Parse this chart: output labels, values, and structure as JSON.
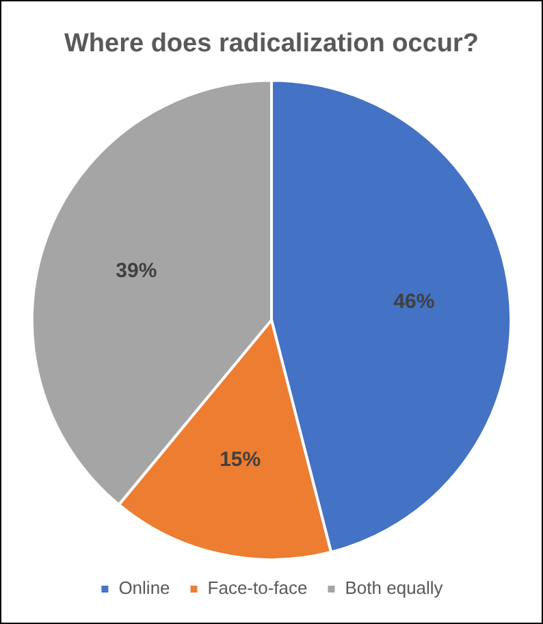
{
  "chart_data": {
    "type": "pie",
    "title": "Where does radicalization occur?",
    "categories": [
      "Online",
      "Face-to-face",
      "Both equally"
    ],
    "values": [
      46,
      15,
      39
    ],
    "colors": [
      "#4472c4",
      "#ed7d31",
      "#a5a5a5"
    ],
    "value_labels": [
      "46%",
      "15%",
      "39%"
    ],
    "legend": "bottom"
  }
}
